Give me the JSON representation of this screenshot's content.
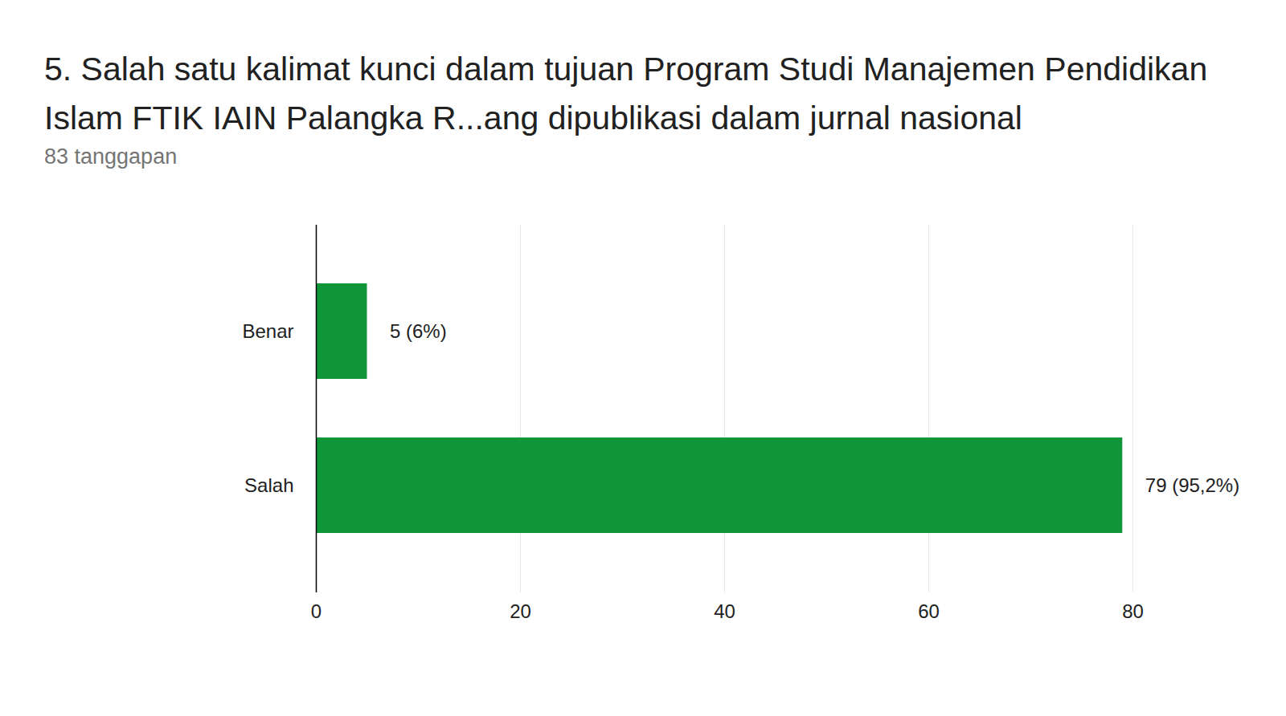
{
  "chart_data": {
    "type": "bar",
    "orientation": "horizontal",
    "title": "5. Salah satu kalimat kunci dalam tujuan Program Studi Manajemen Pendidikan Islam FTIK IAIN Palangka R...ang dipublikasi dalam jurnal nasional",
    "subtitle": "83 tanggapan",
    "categories": [
      "Benar",
      "Salah"
    ],
    "values": [
      5,
      79
    ],
    "value_labels": [
      "5 (6%)",
      "79 (95,2%)"
    ],
    "data_labels": true,
    "color": "#0f9639",
    "xlim": [
      0,
      80
    ],
    "xticks": [
      0,
      20,
      40,
      60,
      80
    ],
    "grid": true
  }
}
